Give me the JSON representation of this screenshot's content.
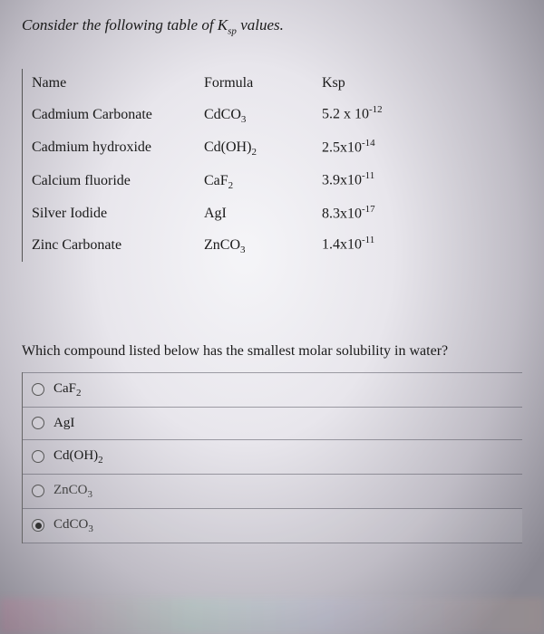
{
  "prompt_prefix": "Consider the following table of K",
  "prompt_sub": "sp",
  "prompt_suffix": " values.",
  "headers": {
    "name": "Name",
    "formula": "Formula",
    "ksp": "Ksp"
  },
  "rows": [
    {
      "name": "Cadmium Carbonate",
      "f_base": "CdCO",
      "f_sub": "3",
      "k_coef": "5.2 x 10",
      "k_exp": "-12"
    },
    {
      "name": "Cadmium hydroxide",
      "f_base": "Cd(OH)",
      "f_sub": "2",
      "k_coef": "2.5x10",
      "k_exp": "-14"
    },
    {
      "name": "Calcium fluoride",
      "f_base": "CaF",
      "f_sub": "2",
      "k_coef": "3.9x10",
      "k_exp": "-11"
    },
    {
      "name": "Silver Iodide",
      "f_base": "AgI",
      "f_sub": "",
      "k_coef": "8.3x10",
      "k_exp": "-17"
    },
    {
      "name": "Zinc Carbonate",
      "f_base": "ZnCO",
      "f_sub": "3",
      "k_coef": "1.4x10",
      "k_exp": "-11"
    }
  ],
  "question": "Which compound listed below has the smallest molar solubility in water?",
  "options": [
    {
      "base": "CaF",
      "sub": "2",
      "checked": false
    },
    {
      "base": "AgI",
      "sub": "",
      "checked": false
    },
    {
      "base": "Cd(OH)",
      "sub": "2",
      "checked": false
    },
    {
      "base": "ZnCO",
      "sub": "3",
      "checked": false
    },
    {
      "base": "CdCO",
      "sub": "3",
      "checked": true
    }
  ]
}
